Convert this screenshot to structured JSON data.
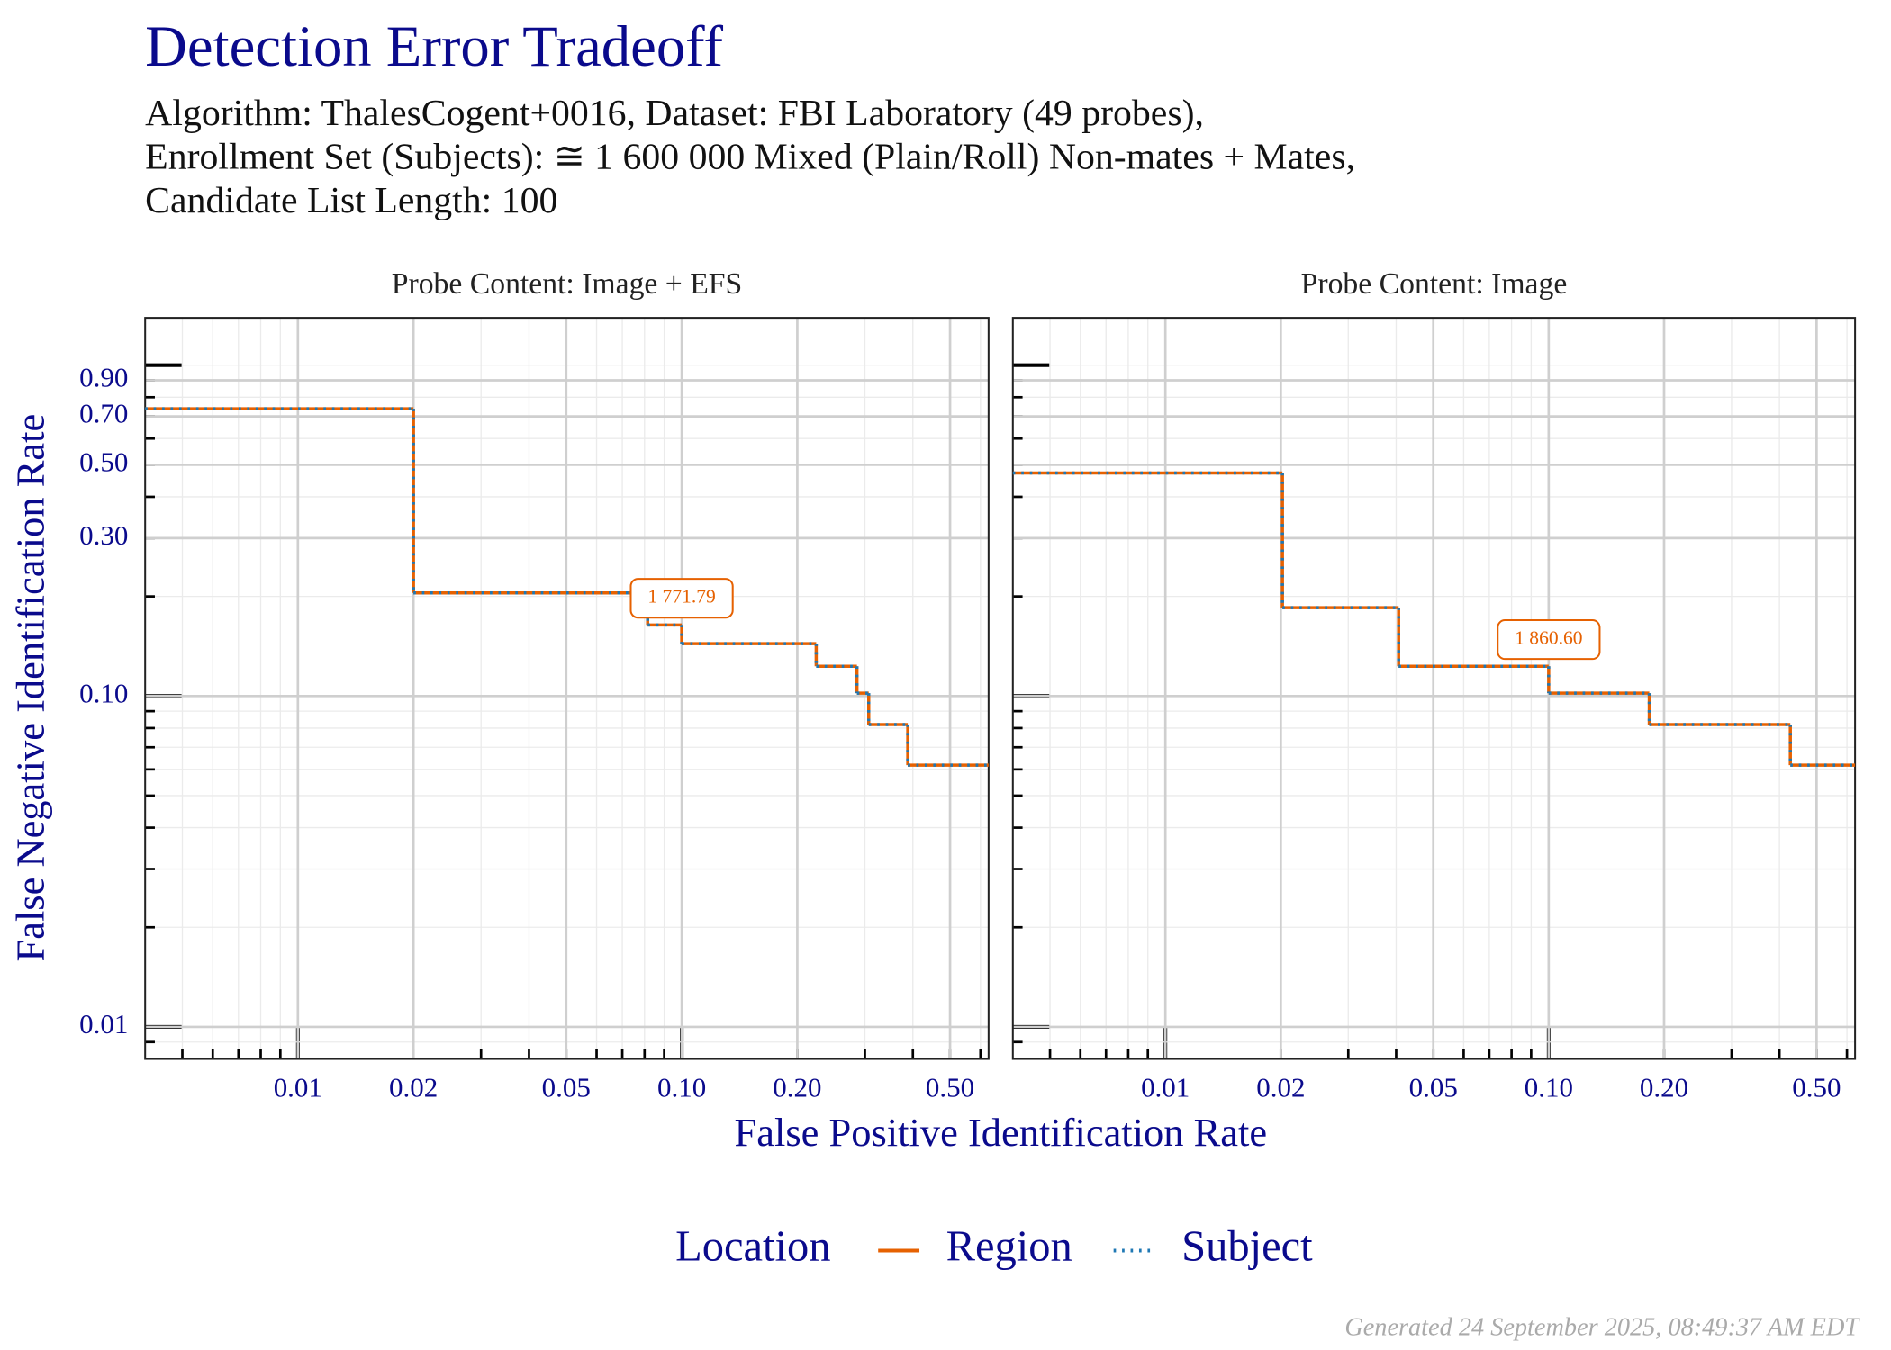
{
  "title": "Detection Error Tradeoff",
  "subtitle": [
    "Algorithm: ThalesCogent+0016, Dataset: FBI Laboratory (49 probes),",
    "Enrollment Set (Subjects): ≅ 1 600 000 Mixed (Plain/Roll) Non-mates + Mates,",
    "Candidate List Length: 100"
  ],
  "x_label": "False Positive Identification Rate",
  "y_label": "False Negative Identification Rate",
  "legend_title": "Location",
  "footer": "Generated 24 September 2025, 08:49:37 AM EDT",
  "chart_data": [
    {
      "type": "step",
      "title": "Probe Content: Image + EFS",
      "log_x": true,
      "log_y": true,
      "grid": true,
      "xlim": [
        0.004,
        0.63
      ],
      "ylim": [
        0.008,
        1.39
      ],
      "xticks": [
        0.01,
        0.02,
        0.05,
        {
          "value": 0.1,
          "label": "0.10"
        },
        {
          "value": 0.2,
          "label": "0.20"
        },
        {
          "value": 0.5,
          "label": "0.50"
        }
      ],
      "yticks": [
        0.01,
        {
          "value": 0.1,
          "label": "0.10"
        },
        {
          "value": 0.3,
          "label": "0.30"
        },
        {
          "value": 0.5,
          "label": "0.50"
        },
        {
          "value": 0.7,
          "label": "0.70"
        },
        {
          "value": 0.9,
          "label": "0.90"
        }
      ],
      "series": [
        {
          "name": "Region",
          "color": "#e66101",
          "x": [
            0.004,
            0.02,
            0.0815,
            0.1,
            0.224,
            0.286,
            0.307,
            0.388
          ],
          "values": [
            0.738,
            0.205,
            0.164,
            0.144,
            0.123,
            0.102,
            0.082,
            0.0618
          ]
        },
        {
          "name": "Subject",
          "color": "#1f78b4",
          "x": [
            0.004,
            0.02,
            0.0815,
            0.1,
            0.224,
            0.286,
            0.307,
            0.388
          ],
          "values": [
            0.738,
            0.205,
            0.164,
            0.144,
            0.123,
            0.102,
            0.082,
            0.0618
          ]
        }
      ],
      "annotations": [
        {
          "label": "1 771.79",
          "x": 0.1,
          "y": 0.164
        }
      ]
    },
    {
      "type": "step",
      "title": "Probe Content: Image",
      "log_x": true,
      "log_y": true,
      "grid": true,
      "xlim": [
        0.004,
        0.63
      ],
      "ylim": [
        0.008,
        1.39
      ],
      "xticks": [
        0.01,
        0.02,
        0.05,
        {
          "value": 0.1,
          "label": "0.10"
        },
        {
          "value": 0.2,
          "label": "0.20"
        },
        {
          "value": 0.5,
          "label": "0.50"
        }
      ],
      "yticks": [
        0.01,
        {
          "value": 0.1,
          "label": "0.10"
        },
        {
          "value": 0.3,
          "label": "0.30"
        },
        {
          "value": 0.5,
          "label": "0.50"
        },
        {
          "value": 0.7,
          "label": "0.70"
        },
        {
          "value": 0.9,
          "label": "0.90"
        }
      ],
      "series": [
        {
          "name": "Region",
          "color": "#e66101",
          "x": [
            0.004,
            0.0202,
            0.0406,
            0.1,
            0.183,
            0.427
          ],
          "values": [
            0.472,
            0.185,
            0.123,
            0.102,
            0.082,
            0.0618
          ]
        },
        {
          "name": "Subject",
          "color": "#1f78b4",
          "x": [
            0.004,
            0.0202,
            0.0406,
            0.1,
            0.183,
            0.427
          ],
          "values": [
            0.472,
            0.185,
            0.123,
            0.102,
            0.082,
            0.0618
          ]
        }
      ],
      "annotations": [
        {
          "label": "1 860.60",
          "x": 0.1,
          "y": 0.123
        }
      ]
    }
  ]
}
